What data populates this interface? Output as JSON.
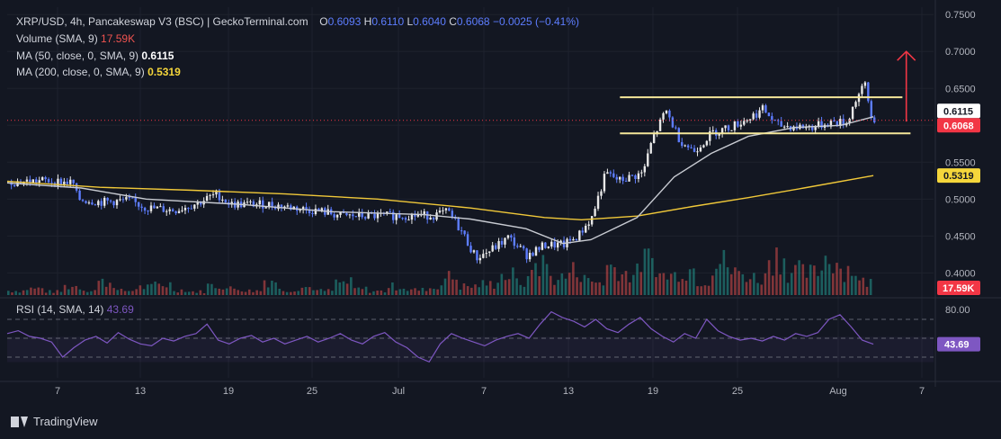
{
  "header": {
    "symbol": "XRP/USD, 4h, Pancakeswap V3 (BSC) | GeckoTerminal.com",
    "o_label": "O",
    "o_value": "0.6093",
    "h_label": "H",
    "h_value": "0.6110",
    "l_label": "L",
    "l_value": "0.6040",
    "c_label": "C",
    "c_value": "0.6068",
    "change": "−0.0025 (−0.41%)",
    "volume_label": "Volume (SMA, 9)",
    "volume_value": "17.59K",
    "ma50_label": "MA (50, close, 0, SMA, 9)",
    "ma50_value": "0.6115",
    "ma200_label": "MA (200, close, 0, SMA, 9)",
    "ma200_value": "0.5319",
    "rsi_label": "RSI (14, SMA, 14)",
    "rsi_value": "43.69"
  },
  "footer": {
    "brand": "TradingView"
  },
  "colors": {
    "background": "#131722",
    "candle_blue": "#5d7dff",
    "candle_white": "#e8e8e8",
    "ma50": "#c8cbd2",
    "ma200": "#f0c839",
    "rsi": "#7e57c2",
    "badge_red": "#f23645",
    "badge_yellow": "#f5d63b",
    "box": "#f5e79a",
    "arrow": "#f23645"
  },
  "chart_data": [
    {
      "type": "candlestick",
      "title": "XRP/USD, 4h, Pancakeswap V3 (BSC) | GeckoTerminal.com",
      "ylim": [
        0.37,
        0.76
      ],
      "y_ticks": [
        "0.7500",
        "0.7000",
        "0.6500",
        "0.6115",
        "0.6068",
        "0.5500",
        "0.5319",
        "0.5000",
        "0.4500",
        "0.4000"
      ],
      "y_tick_values": [
        0.75,
        0.7,
        0.65,
        0.55,
        0.5,
        0.45,
        0.4
      ],
      "x_ticks": [
        "7",
        "13",
        "19",
        "25",
        "Jul",
        "7",
        "13",
        "19",
        "25",
        "Aug",
        "7"
      ],
      "last_price": 0.6068,
      "price_path": [
        [
          0,
          0.523
        ],
        [
          0.04,
          0.525
        ],
        [
          0.07,
          0.522
        ],
        [
          0.075,
          0.5
        ],
        [
          0.1,
          0.496
        ],
        [
          0.13,
          0.498
        ],
        [
          0.15,
          0.488
        ],
        [
          0.18,
          0.485
        ],
        [
          0.205,
          0.495
        ],
        [
          0.225,
          0.507
        ],
        [
          0.24,
          0.493
        ],
        [
          0.28,
          0.493
        ],
        [
          0.31,
          0.488
        ],
        [
          0.34,
          0.483
        ],
        [
          0.36,
          0.477
        ],
        [
          0.4,
          0.477
        ],
        [
          0.43,
          0.478
        ],
        [
          0.46,
          0.478
        ],
        [
          0.475,
          0.483
        ],
        [
          0.49,
          0.455
        ],
        [
          0.505,
          0.42
        ],
        [
          0.52,
          0.43
        ],
        [
          0.54,
          0.448
        ],
        [
          0.56,
          0.424
        ],
        [
          0.58,
          0.438
        ],
        [
          0.6,
          0.438
        ],
        [
          0.615,
          0.45
        ],
        [
          0.63,
          0.475
        ],
        [
          0.645,
          0.535
        ],
        [
          0.66,
          0.525
        ],
        [
          0.685,
          0.535
        ],
        [
          0.695,
          0.58
        ],
        [
          0.71,
          0.62
        ],
        [
          0.725,
          0.58
        ],
        [
          0.74,
          0.565
        ],
        [
          0.76,
          0.59
        ],
        [
          0.78,
          0.598
        ],
        [
          0.8,
          0.61
        ],
        [
          0.815,
          0.622
        ],
        [
          0.83,
          0.6
        ],
        [
          0.85,
          0.598
        ],
        [
          0.87,
          0.598
        ],
        [
          0.89,
          0.605
        ],
        [
          0.905,
          0.603
        ],
        [
          0.915,
          0.635
        ],
        [
          0.925,
          0.655
        ],
        [
          0.932,
          0.608
        ],
        [
          0.935,
          0.6068
        ]
      ],
      "ma50_path": [
        [
          0,
          0.522
        ],
        [
          0.08,
          0.515
        ],
        [
          0.15,
          0.5
        ],
        [
          0.25,
          0.493
        ],
        [
          0.35,
          0.483
        ],
        [
          0.45,
          0.479
        ],
        [
          0.5,
          0.473
        ],
        [
          0.56,
          0.46
        ],
        [
          0.6,
          0.44
        ],
        [
          0.63,
          0.445
        ],
        [
          0.68,
          0.475
        ],
        [
          0.72,
          0.53
        ],
        [
          0.76,
          0.562
        ],
        [
          0.8,
          0.585
        ],
        [
          0.85,
          0.597
        ],
        [
          0.9,
          0.6
        ],
        [
          0.935,
          0.6115
        ]
      ],
      "ma200_path": [
        [
          0,
          0.524
        ],
        [
          0.1,
          0.516
        ],
        [
          0.2,
          0.512
        ],
        [
          0.3,
          0.507
        ],
        [
          0.4,
          0.5
        ],
        [
          0.5,
          0.488
        ],
        [
          0.58,
          0.475
        ],
        [
          0.62,
          0.472
        ],
        [
          0.68,
          0.477
        ],
        [
          0.74,
          0.49
        ],
        [
          0.8,
          0.502
        ],
        [
          0.86,
          0.515
        ],
        [
          0.935,
          0.5319
        ]
      ],
      "box": {
        "top": 0.638,
        "bottom": 0.589,
        "x_start": 0.71,
        "x_end": 0.98
      },
      "arrow": {
        "x": 0.99,
        "from": 0.605,
        "to": 0.7
      }
    },
    {
      "type": "bar",
      "title": "Volume (SMA, 9)",
      "last_value": "17.59K",
      "relative_heights": [
        0.1,
        0.15,
        0.08,
        0.2,
        0.12,
        0.3,
        0.1,
        0.18,
        0.25,
        0.12,
        0.08,
        0.22,
        0.15,
        0.1,
        0.35,
        0.12,
        0.18,
        0.1,
        0.28,
        0.14,
        0.09,
        0.2,
        0.12,
        0.16,
        0.4,
        0.2,
        0.25,
        0.45,
        0.3,
        0.7,
        0.4,
        0.55,
        0.3,
        0.65,
        0.5,
        0.8,
        0.45,
        0.6,
        0.35,
        0.75,
        0.5,
        0.4,
        0.9,
        0.55,
        0.5,
        0.85,
        0.6,
        0.3
      ]
    },
    {
      "type": "line",
      "title": "RSI (14, SMA, 14)",
      "ylim": [
        0,
        100
      ],
      "y_ticks": [
        "80.00"
      ],
      "bands": [
        70,
        50,
        30
      ],
      "last_value": 43.69,
      "values": [
        55,
        58,
        52,
        50,
        46,
        30,
        40,
        48,
        52,
        45,
        56,
        49,
        44,
        42,
        50,
        47,
        52,
        55,
        65,
        48,
        44,
        50,
        53,
        46,
        50,
        44,
        48,
        52,
        46,
        50,
        55,
        48,
        44,
        52,
        56,
        46,
        40,
        30,
        25,
        44,
        55,
        50,
        46,
        42,
        48,
        52,
        55,
        50,
        65,
        78,
        72,
        68,
        62,
        70,
        60,
        56,
        65,
        72,
        60,
        52,
        46,
        55,
        50,
        70,
        58,
        52,
        48,
        50,
        47,
        52,
        48,
        55,
        52,
        56,
        70,
        75,
        62,
        48,
        43.69
      ]
    }
  ]
}
